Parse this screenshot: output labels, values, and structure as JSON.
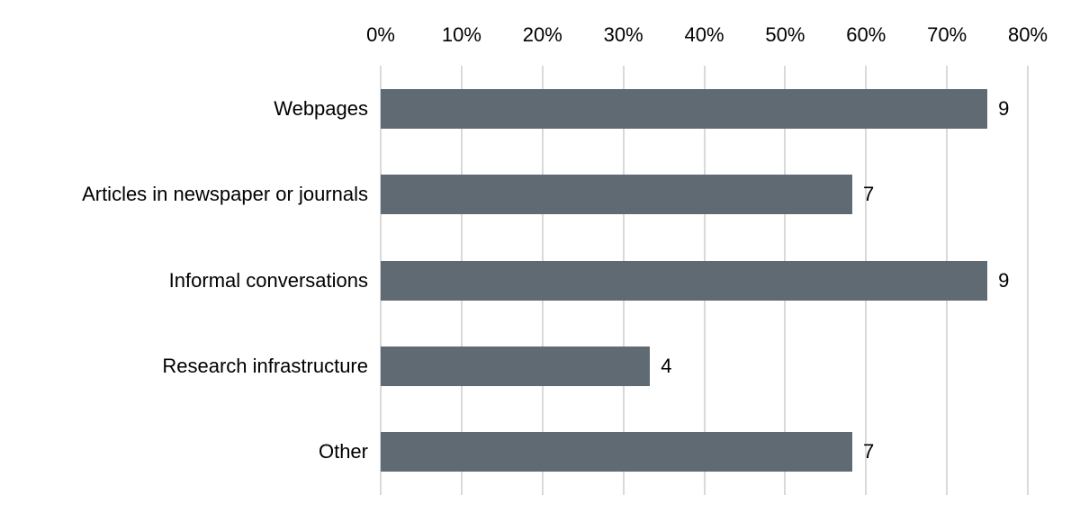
{
  "chart_data": {
    "type": "bar",
    "orientation": "horizontal",
    "title": "",
    "xlabel": "",
    "ylabel": "",
    "categories": [
      "Webpages",
      "Articles in newspaper or journals",
      "Informal conversations",
      "Research infrastructure",
      "Other"
    ],
    "values_percent": [
      75,
      58.3,
      75,
      33.3,
      58.3
    ],
    "bar_labels": [
      "9",
      "7",
      "9",
      "4",
      "7"
    ],
    "x_axis": {
      "position": "top",
      "min": 0,
      "max": 80,
      "tick_step": 10,
      "tick_labels": [
        "0%",
        "10%",
        "20%",
        "30%",
        "40%",
        "50%",
        "60%",
        "70%",
        "80%"
      ]
    },
    "grid": "vertical",
    "legend": "none",
    "colors": {
      "bar": "#5F6A73",
      "gridline": "#D9D9D9",
      "text": "#000000",
      "background": "#FFFFFF"
    }
  }
}
